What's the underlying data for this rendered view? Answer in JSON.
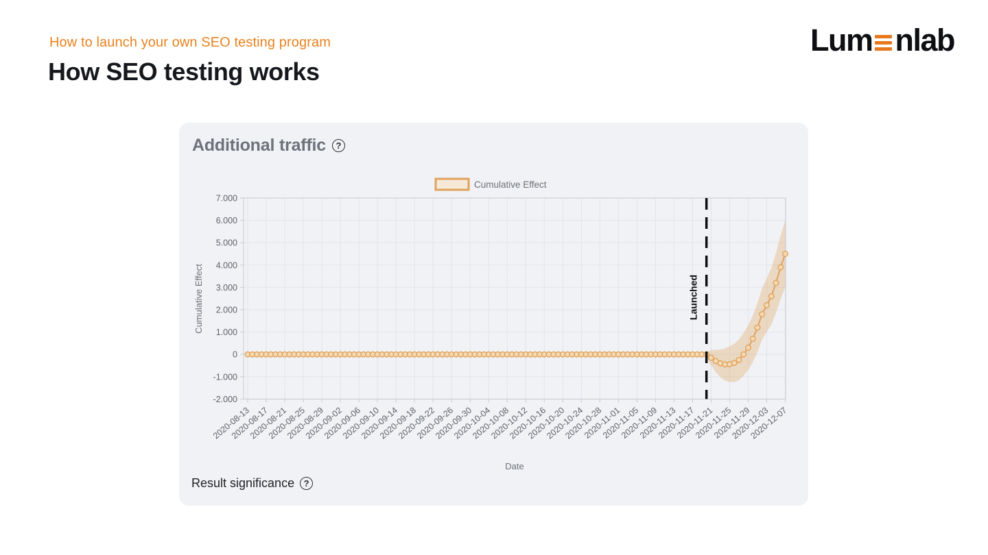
{
  "page": {
    "kicker": "How to launch your own SEO testing program",
    "title": "How SEO testing works",
    "logo": {
      "prefix": "Lum",
      "suffix": "nlab",
      "accent_color": "#E8781D"
    }
  },
  "card": {
    "title": "Additional traffic",
    "title_help_icon": "?",
    "footer": "Result significance",
    "footer_help_icon": "?",
    "background": "#F1F2F5"
  },
  "chart_data": {
    "type": "line",
    "title": "Additional traffic",
    "xlabel": "Date",
    "ylabel": "Cumulative Effect",
    "legend": {
      "label": "Cumulative Effect",
      "position": "top-center"
    },
    "grid": true,
    "unit": "thousands",
    "ylim_thousands": [
      -2,
      7
    ],
    "ytick_labels": [
      "7.000",
      "6.000",
      "5.000",
      "4.000",
      "3.000",
      "2.000",
      "1.000",
      "0",
      "-1.000",
      "-2.000"
    ],
    "x_start_date": "2020-08-13",
    "x_end_date": "2020-12-07",
    "x_point_interval_days": 1,
    "x_tick_every_days": 4,
    "xtick_labels": [
      "2020-08-13",
      "2020-08-17",
      "2020-08-21",
      "2020-08-25",
      "2020-08-29",
      "2020-09-02",
      "2020-09-06",
      "2020-09-10",
      "2020-09-14",
      "2020-09-18",
      "2020-09-22",
      "2020-09-26",
      "2020-09-30",
      "2020-10-04",
      "2020-10-08",
      "2020-10-12",
      "2020-10-16",
      "2020-10-20",
      "2020-10-24",
      "2020-10-28",
      "2020-11-01",
      "2020-11-05",
      "2020-11-09",
      "2020-11-13",
      "2020-11-17",
      "2020-11-21",
      "2020-11-25",
      "2020-11-29",
      "2020-12-03",
      "2020-12-07"
    ],
    "launch_marker": {
      "label": "Launched",
      "date": "2020-11-20",
      "style": "dashed-vertical"
    },
    "series": [
      {
        "name": "Cumulative Effect",
        "baseline_value_thousands": 0,
        "baseline_range": [
          "2020-08-13",
          "2020-11-19"
        ],
        "tail_start_date": "2020-11-20",
        "tail_values_thousands": [
          0,
          -0.15,
          -0.3,
          -0.4,
          -0.45,
          -0.44,
          -0.38,
          -0.25,
          0,
          0.3,
          0.7,
          1.2,
          1.8,
          2.2,
          2.6,
          3.2,
          3.9,
          4.5
        ],
        "tail_band_half_width_thousands": [
          0.1,
          0.35,
          0.5,
          0.62,
          0.72,
          0.8,
          0.86,
          0.91,
          0.96,
          1.0,
          1.05,
          1.1,
          1.15,
          1.2,
          1.27,
          1.34,
          1.42,
          1.5
        ]
      }
    ],
    "colors": {
      "line": "#DFA25C",
      "marker_fill": "#F4D9B2",
      "band": "rgba(224,163,94,0.33)",
      "legend_swatch_fill": "#F7E9D7",
      "grid": "#E2E4E9",
      "axis": "#C7CAD0",
      "launch_line": "#0E0E10",
      "tick_text": "#5D6167"
    }
  }
}
